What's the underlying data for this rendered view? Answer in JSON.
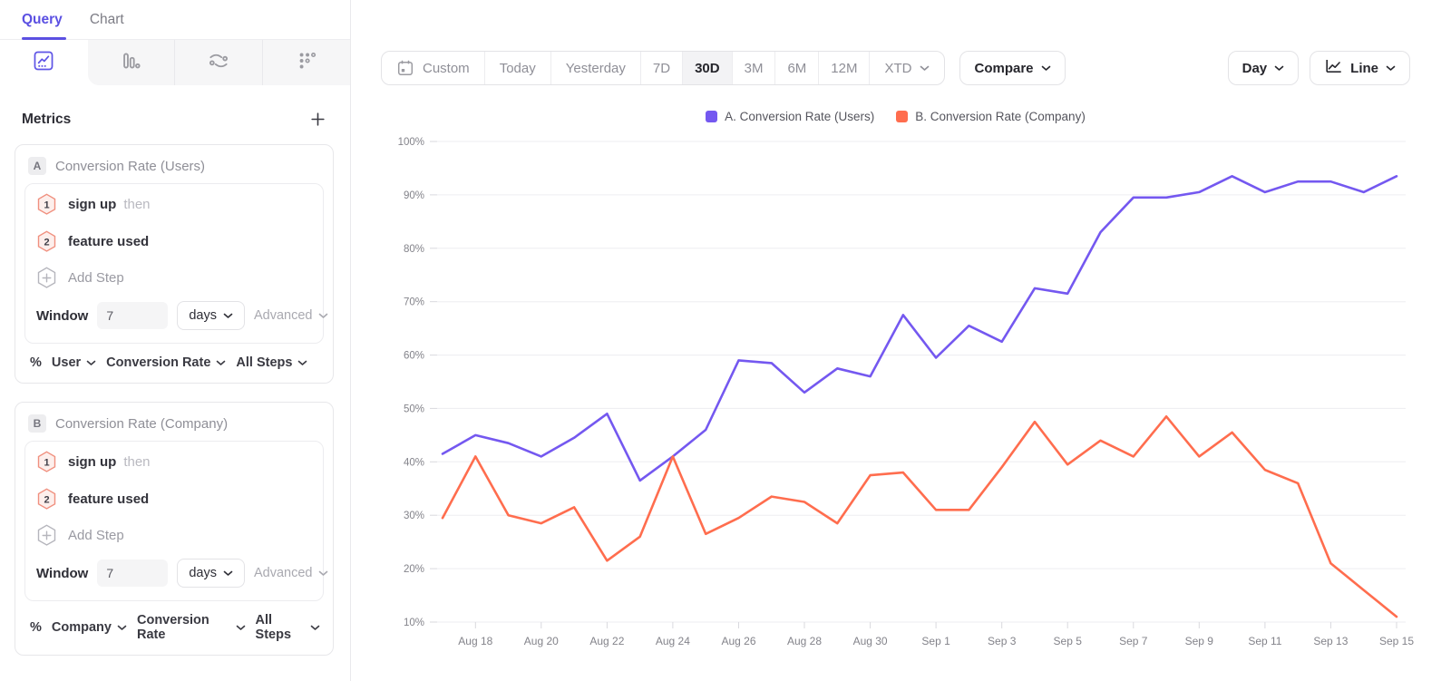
{
  "sidebar": {
    "tabs": [
      {
        "label": "Query",
        "active": true
      },
      {
        "label": "Chart",
        "active": false
      }
    ],
    "chart_types": [
      "line-chart-icon",
      "bar-chart-icon",
      "flow-chart-icon",
      "dots-grid-icon"
    ],
    "metrics_header": {
      "title": "Metrics",
      "add_label": "+"
    },
    "cards": [
      {
        "badge": "A",
        "title": "Conversion Rate (Users)",
        "steps": [
          {
            "num": "1",
            "label": "sign up",
            "suffix": "then"
          },
          {
            "num": "2",
            "label": "feature used",
            "suffix": ""
          }
        ],
        "add_step_label": "Add Step",
        "window": {
          "label": "Window",
          "value": "7",
          "unit": "days",
          "advanced_label": "Advanced"
        },
        "footer": {
          "percent": "%",
          "entity": "User",
          "metric": "Conversion Rate",
          "steps": "All Steps"
        }
      },
      {
        "badge": "B",
        "title": "Conversion Rate (Company)",
        "steps": [
          {
            "num": "1",
            "label": "sign up",
            "suffix": "then"
          },
          {
            "num": "2",
            "label": "feature used",
            "suffix": ""
          }
        ],
        "add_step_label": "Add Step",
        "window": {
          "label": "Window",
          "value": "7",
          "unit": "days",
          "advanced_label": "Advanced"
        },
        "footer": {
          "percent": "%",
          "entity": "Company",
          "metric": "Conversion Rate",
          "steps": "All Steps"
        }
      }
    ]
  },
  "toolbar": {
    "date_ranges": [
      {
        "label": "Custom",
        "icon": "calendar",
        "active": false
      },
      {
        "label": "Today",
        "active": false
      },
      {
        "label": "Yesterday",
        "active": false
      },
      {
        "label": "7D",
        "short": true,
        "active": false
      },
      {
        "label": "30D",
        "short": true,
        "active": true
      },
      {
        "label": "3M",
        "short": true,
        "active": false
      },
      {
        "label": "6M",
        "short": true,
        "active": false
      },
      {
        "label": "12M",
        "short": true,
        "active": false
      },
      {
        "label": "XTD",
        "chevron": true,
        "active": false
      }
    ],
    "compare_label": "Compare",
    "interval_label": "Day",
    "chart_style_label": "Line",
    "chart_style_icon": "line-chart-icon"
  },
  "legend": [
    {
      "label": "A. Conversion Rate (Users)",
      "color": "#7458f0"
    },
    {
      "label": "B. Conversion Rate (Company)",
      "color": "#ff6d4e"
    }
  ],
  "chart_data": {
    "type": "line",
    "title": "",
    "xlabel": "",
    "ylabel": "",
    "ylim": [
      10,
      100
    ],
    "grid": "horizontal",
    "legend_position": "top-center",
    "y_ticks": [
      "100%",
      "90%",
      "80%",
      "70%",
      "60%",
      "50%",
      "40%",
      "30%",
      "20%",
      "10%"
    ],
    "x": [
      "Aug 17",
      "Aug 18",
      "Aug 19",
      "Aug 20",
      "Aug 21",
      "Aug 22",
      "Aug 23",
      "Aug 24",
      "Aug 25",
      "Aug 26",
      "Aug 27",
      "Aug 28",
      "Aug 29",
      "Aug 30",
      "Aug 31",
      "Sep 1",
      "Sep 2",
      "Sep 3",
      "Sep 4",
      "Sep 5",
      "Sep 6",
      "Sep 7",
      "Sep 8",
      "Sep 9",
      "Sep 10",
      "Sep 11",
      "Sep 12",
      "Sep 13",
      "Sep 14",
      "Sep 15"
    ],
    "x_labeled_every": 2,
    "series": [
      {
        "name": "A. Conversion Rate (Users)",
        "color": "#7458f0",
        "values": [
          41.5,
          45,
          43.5,
          41,
          44.5,
          49,
          36.5,
          41,
          46,
          59,
          58.5,
          53,
          57.5,
          56,
          67.5,
          59.5,
          65.5,
          62.5,
          72.5,
          71.5,
          83,
          89.5,
          89.5,
          90.5,
          93.5,
          90.5,
          92.5,
          92.5,
          90.5,
          93.5
        ]
      },
      {
        "name": "B. Conversion Rate (Company)",
        "color": "#ff6d4e",
        "values": [
          29.5,
          41,
          30,
          28.5,
          31.5,
          21.5,
          26,
          41,
          26.5,
          29.5,
          33.5,
          32.5,
          28.5,
          37.5,
          38,
          31,
          31,
          39,
          47.5,
          39.5,
          44,
          41,
          48.5,
          41,
          45.5,
          38.5,
          36,
          21,
          16,
          11
        ]
      }
    ]
  }
}
